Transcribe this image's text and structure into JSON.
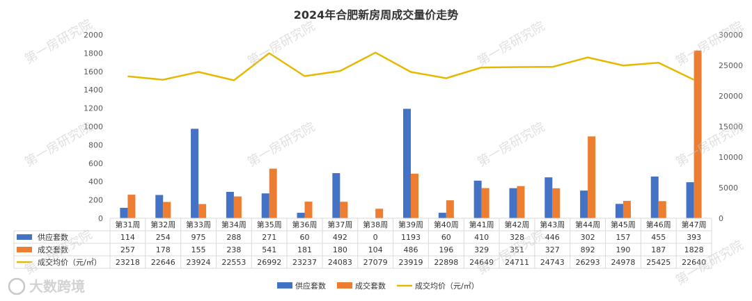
{
  "chart_data": {
    "type": "bar",
    "title": "2024年合肥新房周成交量价走势",
    "categories": [
      "第31周",
      "第32周",
      "第33周",
      "第34周",
      "第35周",
      "第36周",
      "第37周",
      "第38周",
      "第39周",
      "第40周",
      "第41周",
      "第42周",
      "第43周",
      "第44周",
      "第45周",
      "第46周",
      "第47周"
    ],
    "series": [
      {
        "name": "供应套数",
        "kind": "bar",
        "axis": "left",
        "color": "#4472c4",
        "values": [
          114,
          254,
          975,
          288,
          271,
          60,
          492,
          0,
          1193,
          60,
          410,
          328,
          446,
          302,
          157,
          455,
          393
        ]
      },
      {
        "name": "成交套数",
        "kind": "bar",
        "axis": "left",
        "color": "#ed7d31",
        "values": [
          257,
          178,
          155,
          238,
          541,
          181,
          180,
          104,
          486,
          196,
          329,
          351,
          327,
          892,
          190,
          187,
          1828
        ]
      },
      {
        "name": "成交均价（元/㎡）",
        "kind": "line",
        "axis": "right",
        "color": "#e6b800",
        "values": [
          23218,
          22646,
          23924,
          22553,
          26992,
          23237,
          24083,
          27079,
          23919,
          22898,
          24649,
          24711,
          24743,
          26293,
          24978,
          25425,
          22640
        ]
      }
    ],
    "y_left": {
      "min": 0,
      "max": 2000,
      "ticks": [
        "0",
        "200",
        "400",
        "600",
        "800",
        "1000",
        "1200",
        "1400",
        "1600",
        "1800",
        "2000"
      ]
    },
    "y_right": {
      "min": 0,
      "max": 30000,
      "ticks": [
        "0",
        "5000",
        "10000",
        "15000",
        "20000",
        "25000",
        "30000"
      ]
    },
    "legend": "bottom",
    "grid": false,
    "data_table": true
  },
  "watermark": "第一房研究院",
  "logo": "大数跨境"
}
